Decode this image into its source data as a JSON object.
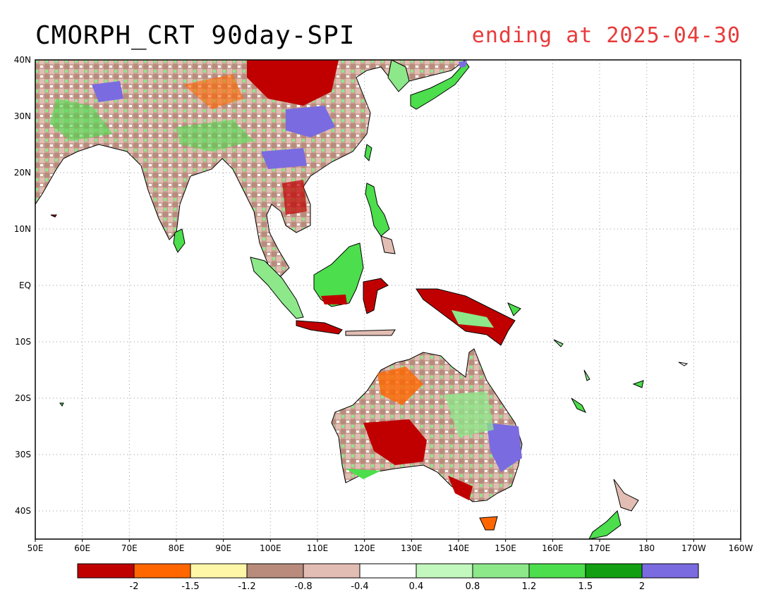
{
  "title": {
    "main": "CMORPH_CRT 90day-SPI",
    "ending": "ending at 2025-04-30",
    "ending_color": "#e83a3a"
  },
  "map": {
    "lon_range": [
      50,
      200
    ],
    "lat_range": [
      -45,
      40
    ],
    "grid": true,
    "x_tick_labels": [
      "50E",
      "60E",
      "70E",
      "80E",
      "90E",
      "100E",
      "110E",
      "120E",
      "130E",
      "140E",
      "150E",
      "160E",
      "170E",
      "180",
      "170W",
      "160W"
    ],
    "y_tick_labels": [
      "40N",
      "30N",
      "20N",
      "10N",
      "EQ",
      "10S",
      "20S",
      "30S",
      "40S"
    ]
  },
  "colorbar": {
    "colors": [
      "#c00000",
      "#ff6600",
      "#fff7a8",
      "#b88b7c",
      "#e2bdb3",
      "#ffffff",
      "#c2f7bd",
      "#8de88a",
      "#4cde4c",
      "#12a012",
      "#7a6be0"
    ],
    "labels": [
      "-2",
      "-1.5",
      "-1.2",
      "-0.8",
      "-0.4",
      "0.4",
      "0.8",
      "1.2",
      "1.5",
      "2"
    ]
  }
}
